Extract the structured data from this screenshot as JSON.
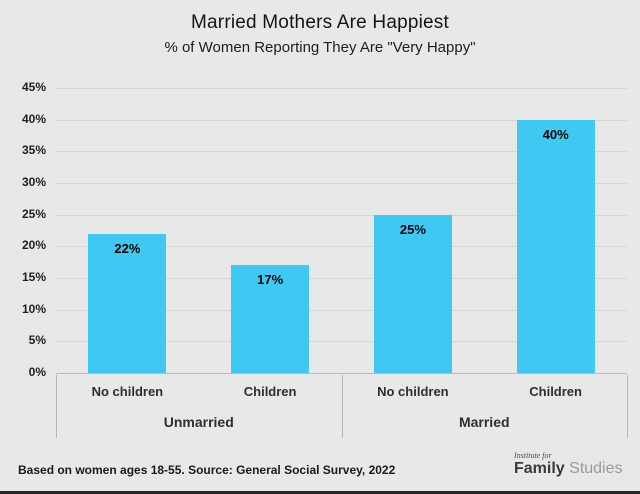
{
  "header": {
    "title": "Married Mothers Are Happiest",
    "subtitle": "% of Women Reporting They Are \"Very Happy\""
  },
  "chart_data": {
    "type": "bar",
    "title": "Married Mothers Are Happiest",
    "subtitle": "% of Women Reporting They Are \"Very Happy\"",
    "groups": [
      {
        "label": "Unmarried",
        "categories": [
          "No children",
          "Children"
        ],
        "values": [
          22,
          17
        ],
        "value_labels": [
          "22%",
          "17%"
        ]
      },
      {
        "label": "Married",
        "categories": [
          "No children",
          "Children"
        ],
        "values": [
          25,
          40
        ],
        "value_labels": [
          "25%",
          "40%"
        ]
      }
    ],
    "categories": [
      "No children",
      "Children",
      "No children",
      "Children"
    ],
    "values": [
      22,
      17,
      25,
      40
    ],
    "value_labels": [
      "22%",
      "17%",
      "25%",
      "40%"
    ],
    "yticks": [
      "0%",
      "5%",
      "10%",
      "15%",
      "20%",
      "25%",
      "30%",
      "35%",
      "40%",
      "45%"
    ],
    "ylim": [
      0,
      45
    ],
    "grid": true,
    "legend": "none",
    "bar_color": "#3EC8F2",
    "background_color": "#e9e8e8",
    "value_label_color": "#000000"
  },
  "footer": {
    "note": "Based on women ages 18-55. Source: General Social Survey, 2022",
    "logo": {
      "top": "Institute for",
      "brand_bold": "Family",
      "brand_light": "Studies"
    }
  }
}
